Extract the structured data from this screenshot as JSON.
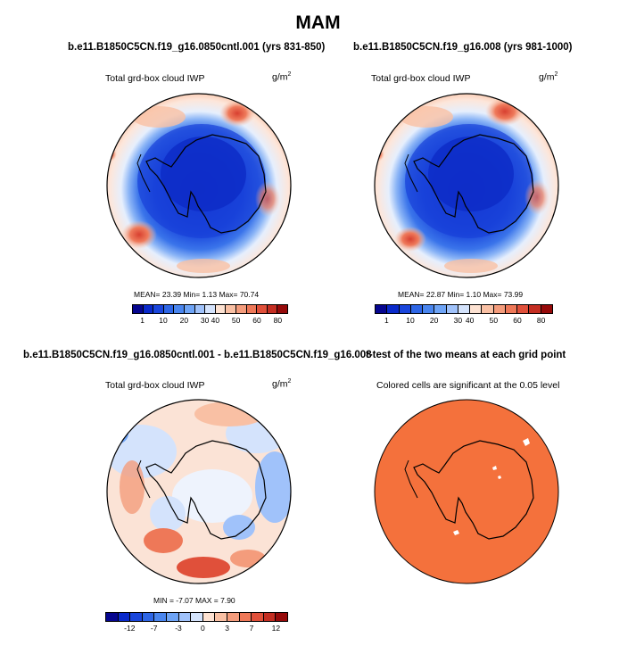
{
  "title": "MAM",
  "panels": [
    {
      "title": "b.e11.B1850C5CN.f19_g16.0850cntl.001 (yrs 831-850)",
      "subtitle": "Total grd-box cloud IWP",
      "units": "g/m",
      "units_exp": "2",
      "stats": "MEAN=  23.39  Min=    1.13  Max=  70.74",
      "colorbar": {
        "colors": [
          "#06068f",
          "#0a2acb",
          "#1a46dc",
          "#2e66e6",
          "#4a86ef",
          "#6ea4f6",
          "#a0c2fa",
          "#d4e3fc",
          "#fde2d2",
          "#f9c0a4",
          "#f49c7c",
          "#ee7858",
          "#e0503a",
          "#c42e22",
          "#960a0a"
        ],
        "labels": [
          "1",
          "10",
          "20",
          "30",
          "40",
          "50",
          "60",
          "80"
        ]
      }
    },
    {
      "title": "b.e11.B1850C5CN.f19_g16.008 (yrs 981-1000)",
      "subtitle": "Total grd-box cloud IWP",
      "units": "g/m",
      "units_exp": "2",
      "stats": "MEAN=  22.87  Min=    1.10  Max=  73.99",
      "colorbar": {
        "colors": [
          "#06068f",
          "#0a2acb",
          "#1a46dc",
          "#2e66e6",
          "#4a86ef",
          "#6ea4f6",
          "#a0c2fa",
          "#d4e3fc",
          "#fde2d2",
          "#f9c0a4",
          "#f49c7c",
          "#ee7858",
          "#e0503a",
          "#c42e22",
          "#960a0a"
        ],
        "labels": [
          "1",
          "10",
          "20",
          "30",
          "40",
          "50",
          "60",
          "80"
        ]
      }
    },
    {
      "title": "b.e11.B1850C5CN.f19_g16.0850cntl.001 - b.e11.B1850C5CN.f19_g16.008",
      "subtitle": "Total grd-box cloud IWP",
      "units": "g/m",
      "units_exp": "2",
      "stats": "MIN =  -7.07 MAX =   7.90",
      "colorbar": {
        "colors": [
          "#06068f",
          "#0a2acb",
          "#1a46dc",
          "#2e66e6",
          "#4a86ef",
          "#6ea4f6",
          "#a0c2fa",
          "#d4e3fc",
          "#fde2d2",
          "#f9c0a4",
          "#f49c7c",
          "#ee7858",
          "#e0503a",
          "#c42e22",
          "#960a0a"
        ],
        "labels": [
          "-12",
          "-7",
          "-3",
          "0",
          "3",
          "7",
          "12"
        ]
      }
    },
    {
      "title": "t-test of the two means at each grid point",
      "subtitle": "Colored cells are significant at the 0.05 level"
    }
  ],
  "colors": {
    "ttest_fill": "#f4713c",
    "coast": "#000000"
  }
}
